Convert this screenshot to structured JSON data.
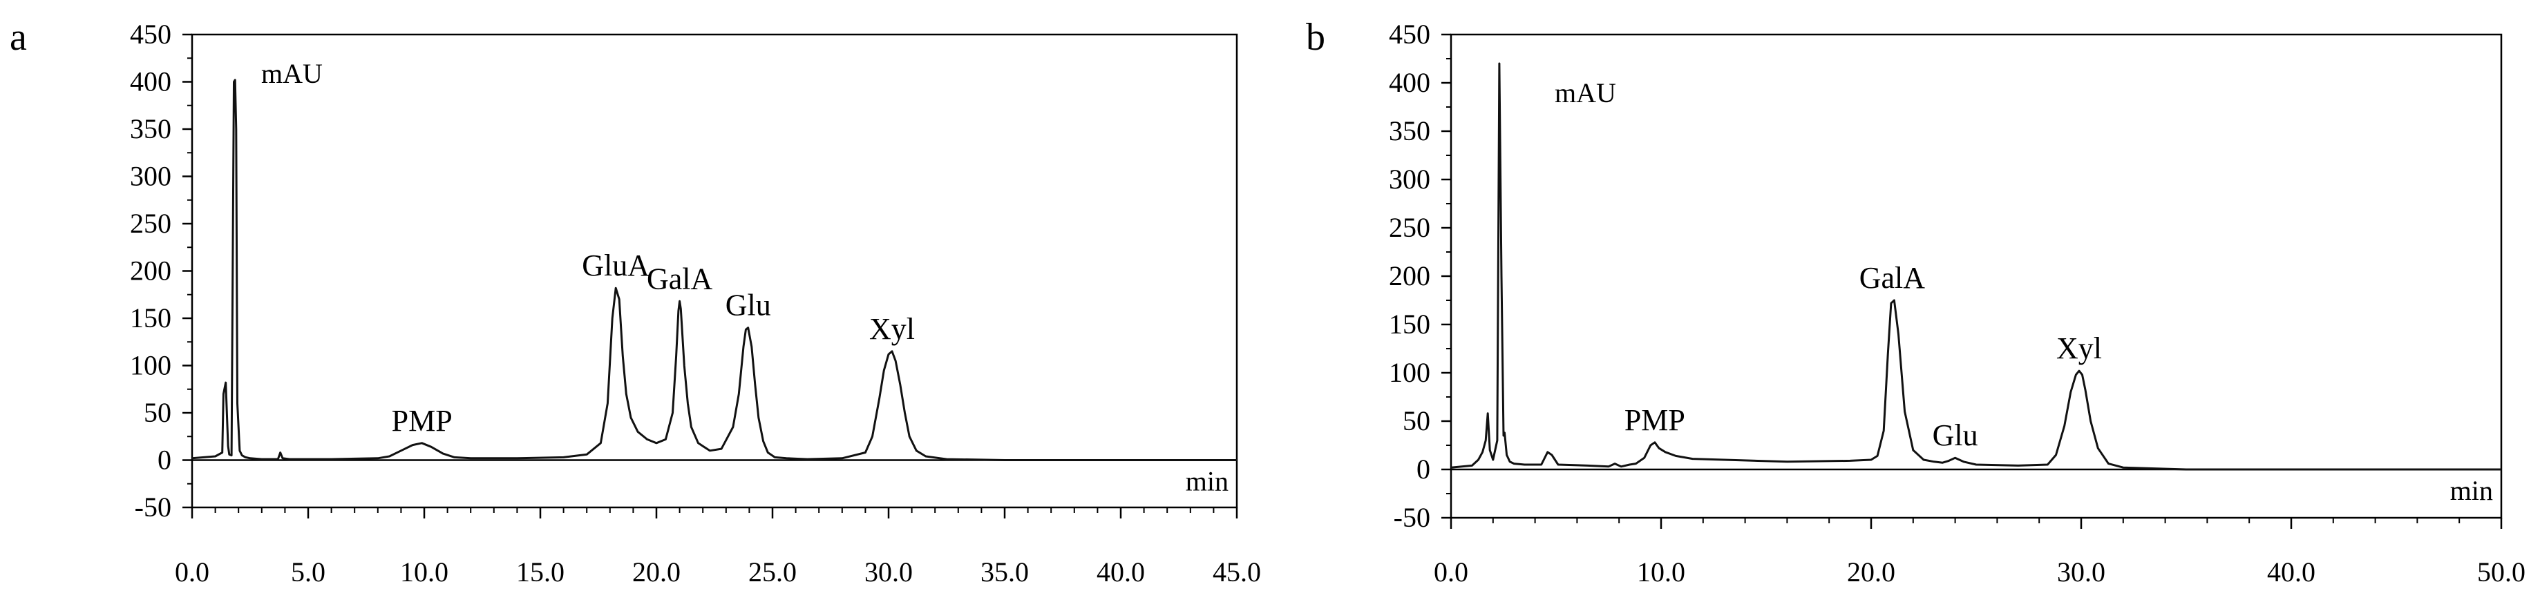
{
  "chart_data": [
    {
      "type": "line",
      "panel_label": "a",
      "xlabel": "min",
      "ylabel": "mAU",
      "xlim": [
        0,
        45
      ],
      "ylim": [
        -50,
        450
      ],
      "x_ticks": [
        "0.0",
        "5.0",
        "10.0",
        "15.0",
        "20.0",
        "25.0",
        "30.0",
        "35.0",
        "40.0",
        "45.0"
      ],
      "y_ticks": [
        "-50",
        "0",
        "50",
        "100",
        "150",
        "200",
        "250",
        "300",
        "350",
        "400",
        "450"
      ],
      "grid": false,
      "series": [
        {
          "x": [
            0,
            1.0,
            1.3,
            1.35,
            1.45,
            1.55,
            1.6,
            1.7,
            1.8,
            1.85,
            1.9,
            1.95,
            2.05,
            2.15,
            2.3,
            2.5,
            3.0,
            3.7,
            3.8,
            3.9,
            4.2,
            6.0,
            8.0,
            8.5,
            9.0,
            9.5,
            9.9,
            10.3,
            10.8,
            11.3,
            12.0,
            14.0,
            16.0,
            17.0,
            17.6,
            17.9,
            18.1,
            18.25,
            18.4,
            18.55,
            18.7,
            18.9,
            19.2,
            19.6,
            20.0,
            20.4,
            20.7,
            20.85,
            20.95,
            21.0,
            21.05,
            21.2,
            21.35,
            21.5,
            21.8,
            22.3,
            22.8,
            23.3,
            23.55,
            23.75,
            23.85,
            23.95,
            24.1,
            24.25,
            24.4,
            24.6,
            24.8,
            25.1,
            25.6,
            26.5,
            28.0,
            29.0,
            29.3,
            29.6,
            29.8,
            30.0,
            30.15,
            30.3,
            30.5,
            30.7,
            30.9,
            31.2,
            31.6,
            32.5,
            35.0,
            40.0,
            45.0
          ],
          "y": [
            2,
            4,
            8,
            70,
            82,
            15,
            6,
            5,
            400,
            402,
            350,
            60,
            10,
            5,
            3,
            2,
            1,
            1,
            8,
            2,
            1,
            1,
            2,
            4,
            10,
            16,
            18,
            14,
            7,
            3,
            2,
            2,
            3,
            6,
            18,
            60,
            150,
            182,
            170,
            110,
            70,
            45,
            30,
            22,
            18,
            22,
            50,
            110,
            158,
            168,
            160,
            100,
            60,
            35,
            18,
            10,
            12,
            35,
            70,
            120,
            138,
            140,
            120,
            80,
            45,
            20,
            8,
            3,
            2,
            1,
            2,
            8,
            25,
            65,
            95,
            112,
            115,
            105,
            80,
            50,
            25,
            10,
            4,
            1,
            0,
            0,
            0
          ]
        }
      ],
      "annotations": [
        {
          "text": "GluA",
          "x": 18.25,
          "y": 182
        },
        {
          "text": "GalA",
          "x": 21.0,
          "y": 168
        },
        {
          "text": "Glu",
          "x": 23.95,
          "y": 140
        },
        {
          "text": "Xyl",
          "x": 30.15,
          "y": 115
        },
        {
          "text": "PMP",
          "x": 9.9,
          "y": 18
        }
      ]
    },
    {
      "type": "line",
      "panel_label": "b",
      "xlabel": "min",
      "ylabel": "mAU",
      "xlim": [
        0,
        50
      ],
      "ylim": [
        -50,
        450
      ],
      "x_ticks": [
        "0.0",
        "10.0",
        "20.0",
        "30.0",
        "40.0",
        "50.0"
      ],
      "y_ticks": [
        "-50",
        "0",
        "50",
        "100",
        "150",
        "200",
        "250",
        "300",
        "350",
        "400",
        "450"
      ],
      "grid": false,
      "series": [
        {
          "x": [
            0,
            1.0,
            1.3,
            1.5,
            1.65,
            1.75,
            1.85,
            2.0,
            2.2,
            2.3,
            2.4,
            2.5,
            2.55,
            2.65,
            2.8,
            3.0,
            3.5,
            4.3,
            4.6,
            4.8,
            5.1,
            6.5,
            7.5,
            7.8,
            8.1,
            8.5,
            8.8,
            9.2,
            9.5,
            9.7,
            9.9,
            10.2,
            10.7,
            11.5,
            13.0,
            16.0,
            19.0,
            20.0,
            20.3,
            20.6,
            20.8,
            20.95,
            21.1,
            21.3,
            21.6,
            22.0,
            22.5,
            23.0,
            23.4,
            23.7,
            24.0,
            24.4,
            25.0,
            27.0,
            28.4,
            28.8,
            29.2,
            29.5,
            29.75,
            29.9,
            30.05,
            30.2,
            30.45,
            30.8,
            31.3,
            32.0,
            35.0,
            40.0,
            45.0,
            50.0
          ],
          "y": [
            2,
            4,
            10,
            18,
            30,
            58,
            20,
            10,
            30,
            420,
            200,
            35,
            38,
            15,
            8,
            6,
            5,
            5,
            18,
            15,
            5,
            4,
            3,
            6,
            3,
            5,
            6,
            12,
            25,
            28,
            22,
            18,
            14,
            11,
            10,
            8,
            9,
            10,
            14,
            40,
            120,
            172,
            175,
            140,
            60,
            20,
            10,
            8,
            7,
            9,
            12,
            8,
            5,
            4,
            5,
            15,
            45,
            80,
            98,
            102,
            98,
            82,
            50,
            22,
            6,
            2,
            0,
            0,
            0,
            0
          ]
        }
      ],
      "annotations": [
        {
          "text": "GalA",
          "x": 21.0,
          "y": 175
        },
        {
          "text": "Glu",
          "x": 24.0,
          "y": 12
        },
        {
          "text": "Xyl",
          "x": 29.9,
          "y": 102
        },
        {
          "text": "PMP",
          "x": 9.7,
          "y": 28
        }
      ]
    }
  ]
}
